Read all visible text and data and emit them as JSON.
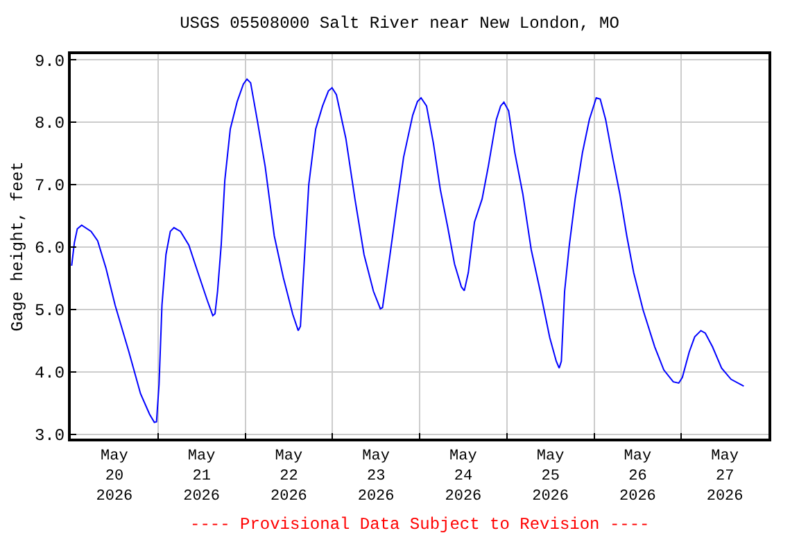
{
  "chart_data": {
    "type": "line",
    "title": "USGS 05508000 Salt River near New London, MO",
    "ylabel": "Gage height, feet",
    "annotations": [
      "---- Provisional Data Subject to Revision ----"
    ],
    "grid": true,
    "marker": "none",
    "line_style": "solid",
    "xlim": [
      "2026-05-20T00:00",
      "2026-05-28T00:00"
    ],
    "xticks": [
      {
        "value": "2026-05-20T12:00",
        "label": "May\n20\n2026"
      },
      {
        "value": "2026-05-21T12:00",
        "label": "May\n21\n2026"
      },
      {
        "value": "2026-05-22T12:00",
        "label": "May\n22\n2026"
      },
      {
        "value": "2026-05-23T12:00",
        "label": "May\n23\n2026"
      },
      {
        "value": "2026-05-24T12:00",
        "label": "May\n24\n2026"
      },
      {
        "value": "2026-05-25T12:00",
        "label": "May\n25\n2026"
      },
      {
        "value": "2026-05-26T12:00",
        "label": "May\n26\n2026"
      },
      {
        "value": "2026-05-27T12:00",
        "label": "May\n27\n2026"
      },
      {
        "value": "2026-05-21T00:00",
        "label": null
      },
      {
        "value": "2026-05-22T00:00",
        "label": null
      },
      {
        "value": "2026-05-23T00:00",
        "label": null
      },
      {
        "value": "2026-05-24T00:00",
        "label": null
      },
      {
        "value": "2026-05-25T00:00",
        "label": null
      },
      {
        "value": "2026-05-26T00:00",
        "label": null
      },
      {
        "value": "2026-05-27T00:00",
        "label": null
      }
    ],
    "ylim": [
      2.93,
      9.09
    ],
    "yticks": [
      {
        "value": 3,
        "label": "3.0"
      },
      {
        "value": 4,
        "label": "4.0"
      },
      {
        "value": 5,
        "label": "5.0"
      },
      {
        "value": 6,
        "label": "6.0"
      },
      {
        "value": 7,
        "label": "7.0"
      },
      {
        "value": 8,
        "label": "8.0"
      },
      {
        "value": 9,
        "label": "9.0"
      }
    ],
    "series": [
      {
        "color": "#0000ff",
        "x": [
          "2026-05-20T00:15",
          "2026-05-20T01:00",
          "2026-05-20T01:48",
          "2026-05-20T03:00",
          "2026-05-20T05:36",
          "2026-05-20T07:24",
          "2026-05-20T09:42",
          "2026-05-20T12:12",
          "2026-05-20T16:00",
          "2026-05-20T19:12",
          "2026-05-20T21:42",
          "2026-05-20T23:00",
          "2026-05-20T23:36",
          "2026-05-21T00:18",
          "2026-05-21T01:06",
          "2026-05-21T02:12",
          "2026-05-21T03:24",
          "2026-05-21T04:24",
          "2026-05-21T06:12",
          "2026-05-21T08:30",
          "2026-05-21T11:00",
          "2026-05-21T13:36",
          "2026-05-21T15:06",
          "2026-05-21T15:42",
          "2026-05-21T16:24",
          "2026-05-21T17:24",
          "2026-05-21T18:24",
          "2026-05-21T19:54",
          "2026-05-21T21:48",
          "2026-05-21T23:30",
          "2026-05-22T00:30",
          "2026-05-22T01:30",
          "2026-05-22T03:18",
          "2026-05-22T05:30",
          "2026-05-22T08:00",
          "2026-05-22T10:30",
          "2026-05-22T13:06",
          "2026-05-22T14:36",
          "2026-05-22T15:12",
          "2026-05-22T16:18",
          "2026-05-22T17:30",
          "2026-05-22T19:24",
          "2026-05-22T21:18",
          "2026-05-22T22:54",
          "2026-05-22T23:54",
          "2026-05-23T01:06",
          "2026-05-23T03:42",
          "2026-05-23T06:12",
          "2026-05-23T08:42",
          "2026-05-23T11:18",
          "2026-05-23T13:12",
          "2026-05-23T13:48",
          "2026-05-23T15:42",
          "2026-05-23T17:36",
          "2026-05-23T19:36",
          "2026-05-23T22:06",
          "2026-05-23T23:24",
          "2026-05-24T00:24",
          "2026-05-24T01:54",
          "2026-05-24T03:48",
          "2026-05-24T05:42",
          "2026-05-24T07:42",
          "2026-05-24T09:36",
          "2026-05-24T11:30",
          "2026-05-24T12:18",
          "2026-05-24T13:24",
          "2026-05-24T15:06",
          "2026-05-24T17:12",
          "2026-05-24T18:54",
          "2026-05-24T21:06",
          "2026-05-24T22:18",
          "2026-05-24T23:12",
          "2026-05-25T00:30",
          "2026-05-25T02:12",
          "2026-05-25T04:24",
          "2026-05-25T06:42",
          "2026-05-25T09:12",
          "2026-05-25T11:48",
          "2026-05-25T13:36",
          "2026-05-25T14:24",
          "2026-05-25T15:00",
          "2026-05-25T15:54",
          "2026-05-25T17:12",
          "2026-05-25T18:48",
          "2026-05-25T20:48",
          "2026-05-25T22:42",
          "2026-05-26T00:36",
          "2026-05-26T01:42",
          "2026-05-26T03:12",
          "2026-05-26T05:06",
          "2026-05-26T07:06",
          "2026-05-26T09:00",
          "2026-05-26T10:54",
          "2026-05-26T13:30",
          "2026-05-26T16:42",
          "2026-05-26T19:12",
          "2026-05-26T21:48",
          "2026-05-26T23:18",
          "2026-05-27T00:18",
          "2026-05-27T02:12",
          "2026-05-27T03:42",
          "2026-05-27T05:24",
          "2026-05-27T06:36",
          "2026-05-27T08:36",
          "2026-05-27T11:06",
          "2026-05-27T13:42",
          "2026-05-27T17:12"
        ],
        "values": [
          5.7,
          6.07,
          6.29,
          6.35,
          6.25,
          6.1,
          5.66,
          5.07,
          4.32,
          3.65,
          3.32,
          3.19,
          3.2,
          3.8,
          5.07,
          5.88,
          6.25,
          6.31,
          6.25,
          6.03,
          5.59,
          5.14,
          4.9,
          4.93,
          5.29,
          6.03,
          7.07,
          7.89,
          8.33,
          8.61,
          8.69,
          8.63,
          8.04,
          7.29,
          6.18,
          5.51,
          4.92,
          4.66,
          4.73,
          5.81,
          7.0,
          7.89,
          8.26,
          8.5,
          8.55,
          8.44,
          7.74,
          6.77,
          5.88,
          5.29,
          5.01,
          5.03,
          5.81,
          6.62,
          7.44,
          8.11,
          8.33,
          8.39,
          8.26,
          7.66,
          6.92,
          6.33,
          5.73,
          5.36,
          5.3,
          5.59,
          6.4,
          6.77,
          7.29,
          8.04,
          8.26,
          8.32,
          8.18,
          7.51,
          6.85,
          5.96,
          5.29,
          4.55,
          4.17,
          4.06,
          4.17,
          5.29,
          6.03,
          6.77,
          7.51,
          8.04,
          8.39,
          8.37,
          8.04,
          7.44,
          6.85,
          6.18,
          5.59,
          4.99,
          4.4,
          4.03,
          3.84,
          3.82,
          3.91,
          4.32,
          4.56,
          4.66,
          4.62,
          4.4,
          4.06,
          3.88,
          3.77
        ]
      }
    ]
  }
}
